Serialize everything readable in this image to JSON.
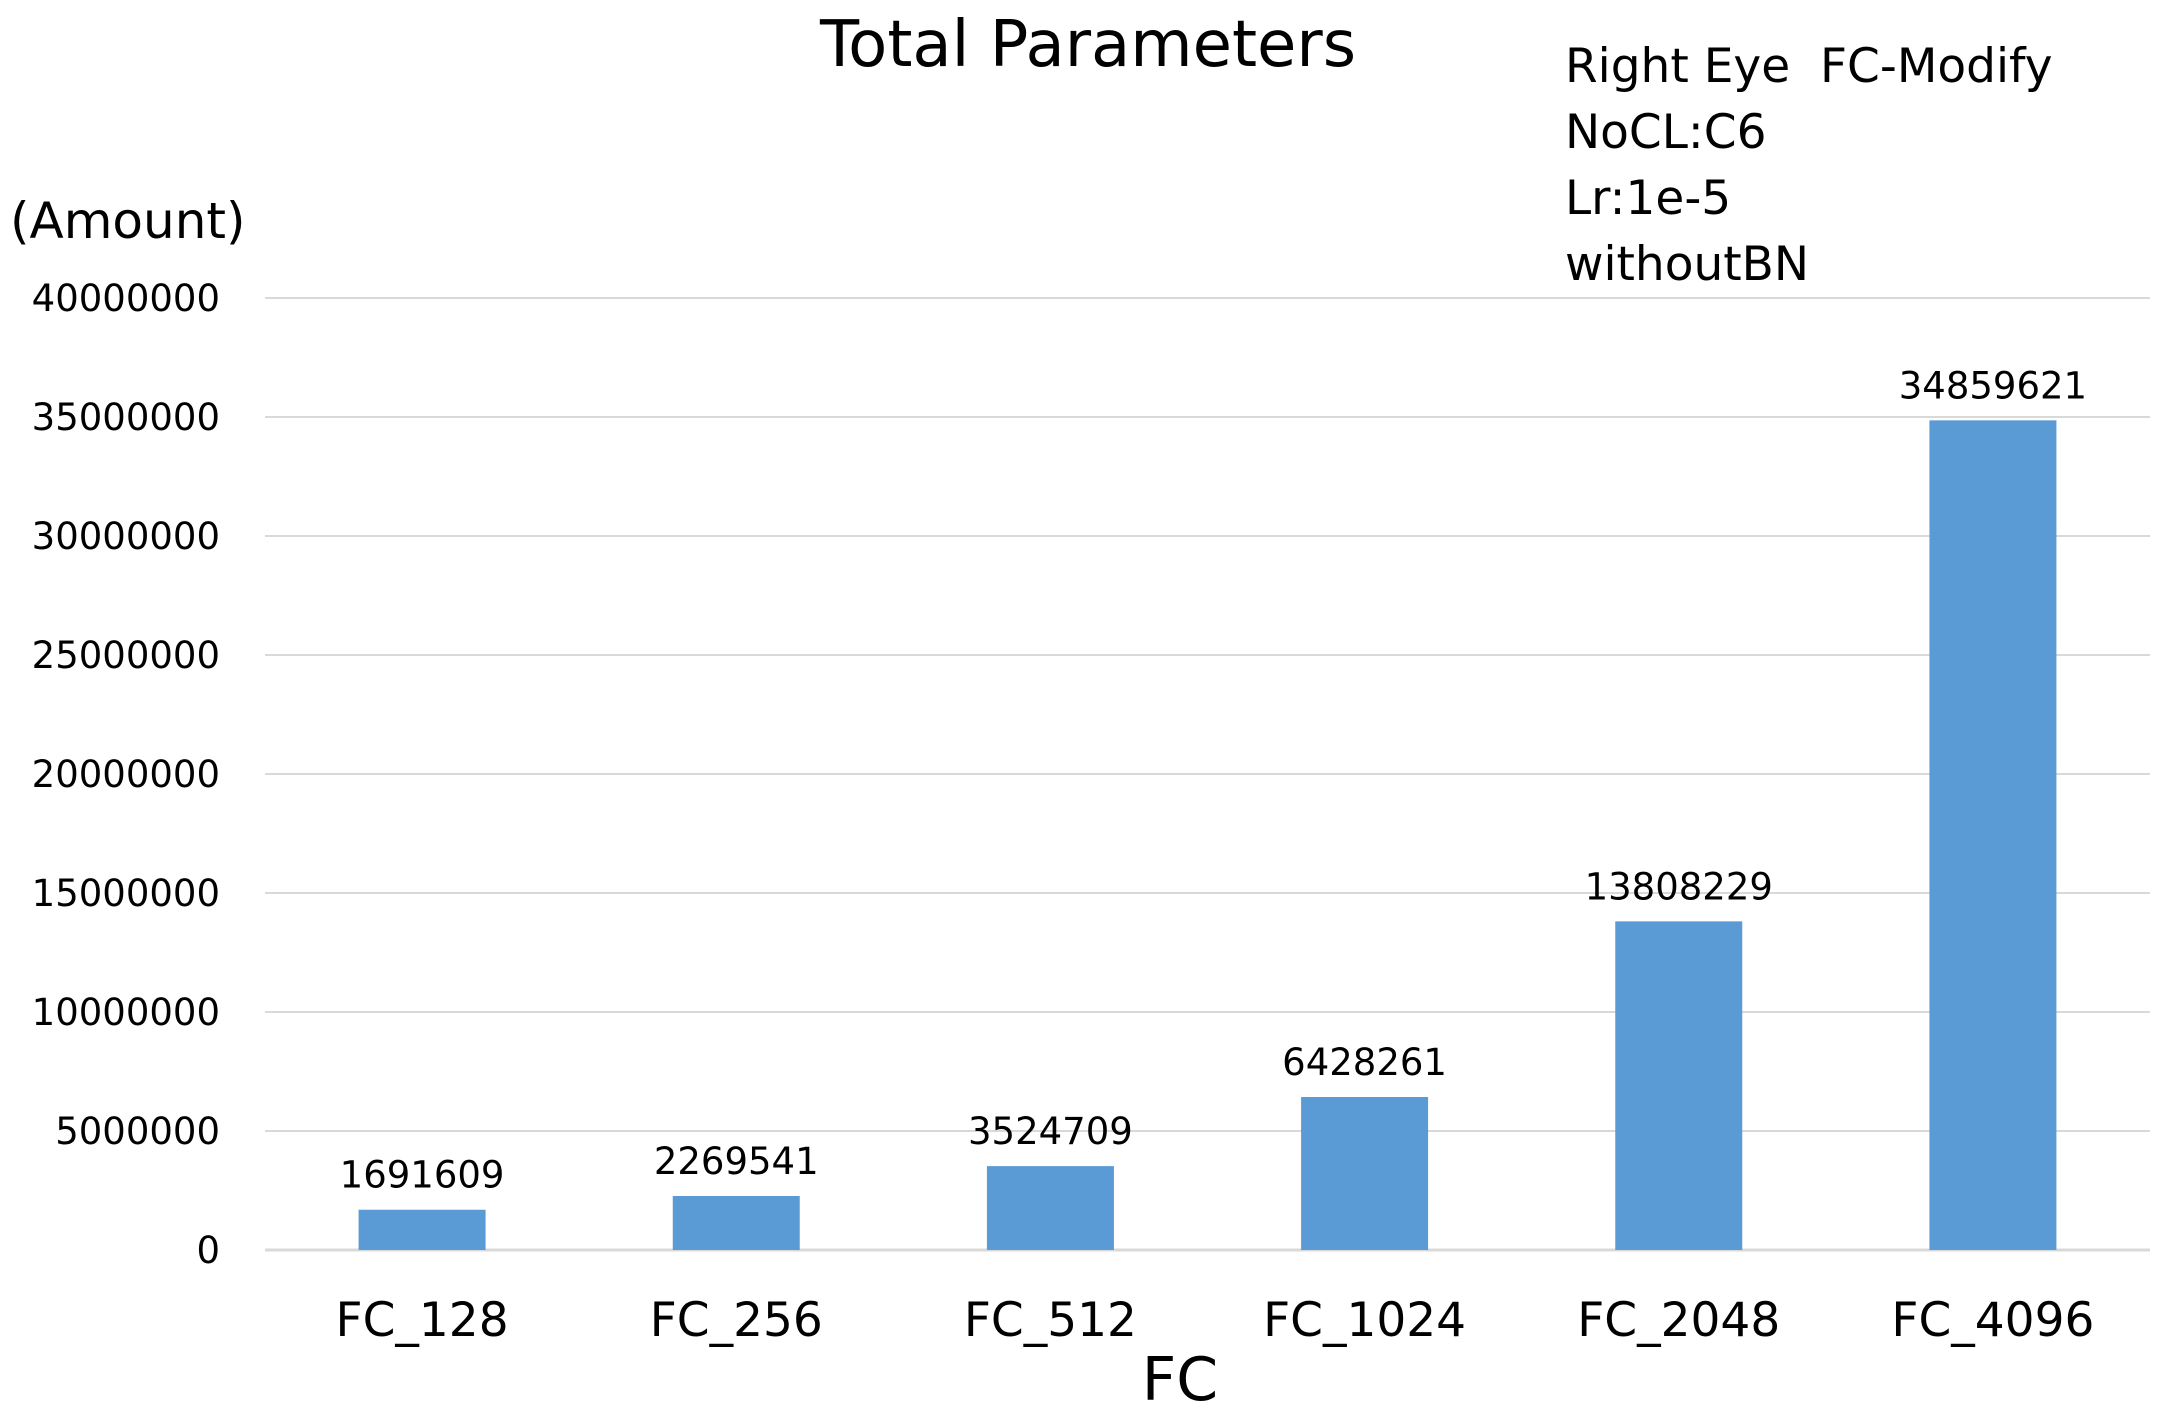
{
  "chart_data": {
    "type": "bar",
    "title": "Total Parameters",
    "annotation": [
      "Right Eye  FC-Modify",
      "NoCL:C6",
      "Lr:1e-5",
      "withoutBN"
    ],
    "ylabel": "(Amount)",
    "xlabel": "FC",
    "categories": [
      "FC_128",
      "FC_256",
      "FC_512",
      "FC_1024",
      "FC_2048",
      "FC_4096"
    ],
    "values": [
      1691609,
      2269541,
      3524709,
      6428261,
      13808229,
      34859621
    ],
    "ylim": [
      0,
      40000000
    ],
    "yticks": [
      "0",
      "5000000",
      "10000000",
      "15000000",
      "20000000",
      "25000000",
      "30000000",
      "35000000",
      "40000000"
    ],
    "grid": true,
    "bar_color": "#5b9bd5"
  }
}
